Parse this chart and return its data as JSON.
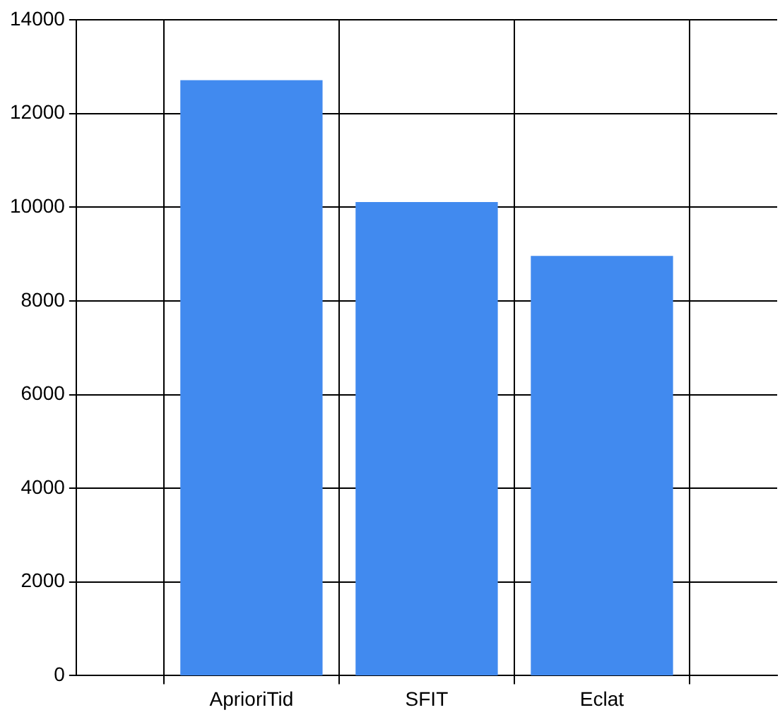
{
  "chart_data": {
    "type": "bar",
    "categories": [
      "AprioriTid",
      "SFIT",
      "Eclat"
    ],
    "values": [
      12700,
      10100,
      8950
    ],
    "color": "#418aef",
    "ylim": [
      0,
      14000
    ],
    "yticks": [
      0,
      2000,
      4000,
      6000,
      8000,
      10000,
      12000,
      14000
    ],
    "grid": true
  }
}
